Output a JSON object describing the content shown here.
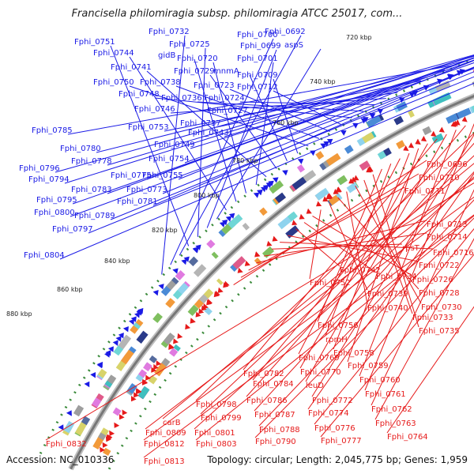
{
  "title": "Francisella philomiragia subsp. philomiragia ATCC 25017, com...",
  "footer": {
    "accession": "Accession: NC_010336",
    "summary": "Topology: circular; Length: 2,045,775 bp; Genes: 1,959"
  },
  "colors": {
    "forward_label": "#1a1ae6",
    "reverse_label": "#e61a1a",
    "backbone": "#777777",
    "tick": "#3a8a3a"
  },
  "kbp_ticks": [
    "720 kbp",
    "740 kbp",
    "760 kbp",
    "780 kbp",
    "800 kbp",
    "820 kbp",
    "840 kbp",
    "860 kbp",
    "880 kbp"
  ],
  "forward_genes": [
    "Fphi_0732",
    "Fphi_0700",
    "Fphi_0692",
    "Fphi_0751",
    "Fphi_0725",
    "Fphi_0699",
    "aspS",
    "Fphi_0744",
    "gidB",
    "Fphi_0720",
    "Fphi_0701",
    "Fphi_0741",
    "Fphi_0729",
    "mnmA",
    "Fphi_0709",
    "Fphi_0750",
    "Fphi_0738",
    "Fphi_0723",
    "Fphi_0712",
    "Fphi_0748",
    "Fphi_0736",
    "Fphi_0724",
    "Fphi_0746",
    "Fphi_0727",
    "Fphi_0737",
    "Fphi_0753",
    "Fphi_0743",
    "Fphi_0749",
    "Fphi_0785",
    "Fphi_0780",
    "Fphi_0754",
    "Fphi_0778",
    "Fphi_0796",
    "Fphi_0775",
    "Fphi_0755",
    "Fphi_0794",
    "Fphi_0783",
    "Fphi_0781",
    "Fphi_0773",
    "Fphi_0795",
    "Fphi_0789",
    "Fphi_0800",
    "Fphi_0797",
    "Fphi_0804"
  ],
  "reverse_genes": [
    "Fphi_0696",
    "Fphi_0710",
    "Fphi_0711",
    "Fphi_0713",
    "Fphi_0714",
    "rpsT",
    "Fphi_0716",
    "Fphi_0722",
    "Fphi_0742",
    "Fphi_0734",
    "Fphi_0726",
    "Fphi_0752",
    "Fphi_0739",
    "Fphi_0728",
    "Fphi_0740",
    "Fphi_0730",
    "Fphi_0733",
    "Fphi_0735",
    "Fphi_0756",
    "rpmH",
    "Fphi_0769",
    "Fphi_0758",
    "Fphi_0759",
    "Fphi_0770",
    "Fphi_0782",
    "leuD",
    "Fphi_0760",
    "Fphi_0784",
    "Fphi_0761",
    "Fphi_0772",
    "Fphi_0798",
    "Fphi_0786",
    "Fphi_0762",
    "Fphi_0774",
    "Fphi_0799",
    "Fphi_0787",
    "Fphi_0763",
    "carB",
    "Fphi_0801",
    "Fphi_0788",
    "Fphi_0776",
    "Fphi_0809",
    "Fphi_0790",
    "Fphi_0777",
    "Fphi_0764",
    "Fphi_0812",
    "Fphi_0803",
    "Fphi_0832",
    "Fphi_0813"
  ]
}
